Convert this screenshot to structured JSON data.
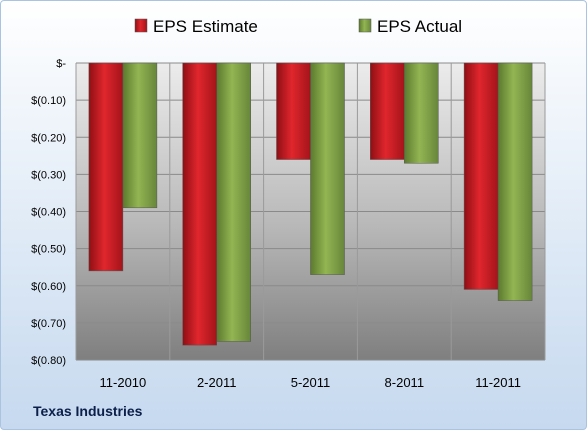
{
  "company": "Texas Industries",
  "colors": {
    "estimate": "#d61f26",
    "actual": "#88a949"
  },
  "chart_data": {
    "type": "bar",
    "categories": [
      "11-2010",
      "2-2011",
      "5-2011",
      "8-2011",
      "11-2011"
    ],
    "series": [
      {
        "name": "EPS Estimate",
        "values": [
          -0.56,
          -0.76,
          -0.26,
          -0.26,
          -0.61
        ]
      },
      {
        "name": "EPS Actual",
        "values": [
          -0.39,
          -0.75,
          -0.57,
          -0.27,
          -0.64
        ]
      }
    ],
    "ylim": [
      -0.8,
      0
    ],
    "yticks": [
      {
        "value": 0,
        "label": "$-"
      },
      {
        "value": -0.1,
        "label": "$(0.10)"
      },
      {
        "value": -0.2,
        "label": "$(0.20)"
      },
      {
        "value": -0.3,
        "label": "$(0.30)"
      },
      {
        "value": -0.4,
        "label": "$(0.40)"
      },
      {
        "value": -0.5,
        "label": "$(0.50)"
      },
      {
        "value": -0.6,
        "label": "$(0.60)"
      },
      {
        "value": -0.7,
        "label": "$(0.70)"
      },
      {
        "value": -0.8,
        "label": "$(0.80)"
      }
    ],
    "grid": true,
    "legend_position": "top"
  }
}
